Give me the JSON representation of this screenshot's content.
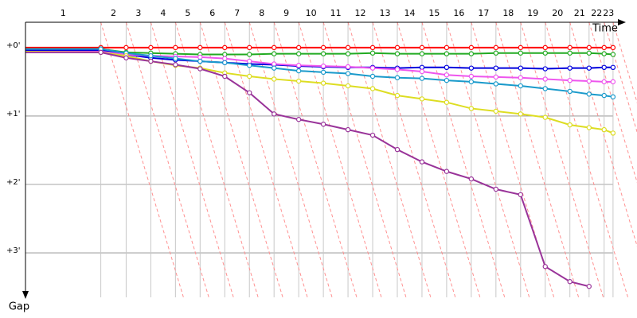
{
  "chart_data": {
    "type": "line",
    "x_label": "Time",
    "y_label": "Gap",
    "laps": [
      "1",
      "2",
      "3",
      "4",
      "5",
      "6",
      "7",
      "8",
      "9",
      "10",
      "11",
      "12",
      "13",
      "14",
      "15",
      "16",
      "17",
      "18",
      "19",
      "20",
      "21",
      "22",
      "23"
    ],
    "x": [
      0,
      1.1,
      1.47,
      1.83,
      2.19,
      2.55,
      2.91,
      3.27,
      3.63,
      3.99,
      4.35,
      4.71,
      5.07,
      5.43,
      5.79,
      6.15,
      6.51,
      6.87,
      7.23,
      7.59,
      7.95,
      8.23,
      8.45,
      8.58
    ],
    "xlim": [
      0,
      8.93
    ],
    "ylim": [
      -0.37,
      3.65
    ],
    "yticks": [
      {
        "value": 0,
        "label": "+0'"
      },
      {
        "value": 1,
        "label": "+1'"
      },
      {
        "value": 2,
        "label": "+2'"
      },
      {
        "value": 3,
        "label": "+3'"
      }
    ],
    "grid": true,
    "series": [
      {
        "color": "#ff0000",
        "values": [
          0,
          0,
          0,
          0,
          0,
          0,
          0,
          0,
          0,
          0,
          0,
          0,
          0,
          0,
          0,
          0,
          0,
          0,
          0,
          0,
          0,
          0,
          0,
          0
        ]
      },
      {
        "color": "#22aa22",
        "values": [
          0.02,
          0.02,
          0.07,
          0.08,
          0.09,
          0.1,
          0.1,
          0.1,
          0.09,
          0.09,
          0.09,
          0.09,
          0.08,
          0.09,
          0.09,
          0.09,
          0.09,
          0.08,
          0.08,
          0.08,
          0.08,
          0.08,
          0.09,
          0.1
        ]
      },
      {
        "color": "#0000dd",
        "values": [
          0.04,
          0.04,
          0.1,
          0.15,
          0.18,
          0.2,
          0.22,
          0.24,
          0.25,
          0.27,
          0.28,
          0.29,
          0.29,
          0.3,
          0.29,
          0.29,
          0.3,
          0.3,
          0.3,
          0.31,
          0.3,
          0.3,
          0.29,
          0.29
        ]
      },
      {
        "color": "#ee55ee",
        "values": [
          0.06,
          0.06,
          0.1,
          0.12,
          0.13,
          0.14,
          0.16,
          0.2,
          0.24,
          0.26,
          0.27,
          0.28,
          0.3,
          0.32,
          0.35,
          0.4,
          0.42,
          0.43,
          0.44,
          0.46,
          0.48,
          0.49,
          0.5,
          0.5
        ]
      },
      {
        "color": "#1a9acb",
        "values": [
          0.02,
          0.02,
          0.08,
          0.12,
          0.16,
          0.2,
          0.22,
          0.26,
          0.3,
          0.34,
          0.36,
          0.38,
          0.42,
          0.44,
          0.45,
          0.48,
          0.5,
          0.53,
          0.56,
          0.6,
          0.64,
          0.68,
          0.7,
          0.72
        ]
      },
      {
        "color": "#dddd22",
        "values": [
          0.06,
          0.07,
          0.12,
          0.2,
          0.26,
          0.3,
          0.37,
          0.42,
          0.46,
          0.49,
          0.52,
          0.56,
          0.6,
          0.7,
          0.75,
          0.8,
          0.89,
          0.93,
          0.97,
          1.02,
          1.13,
          1.17,
          1.2,
          1.25
        ]
      },
      {
        "color": "#993399",
        "values": [
          0.07,
          0.07,
          0.15,
          0.2,
          0.25,
          0.31,
          0.42,
          0.66,
          0.97,
          1.05,
          1.12,
          1.2,
          1.28,
          1.49,
          1.67,
          1.81,
          1.92,
          2.07,
          2.15,
          3.2,
          3.42,
          3.49,
          null,
          null
        ]
      }
    ]
  }
}
